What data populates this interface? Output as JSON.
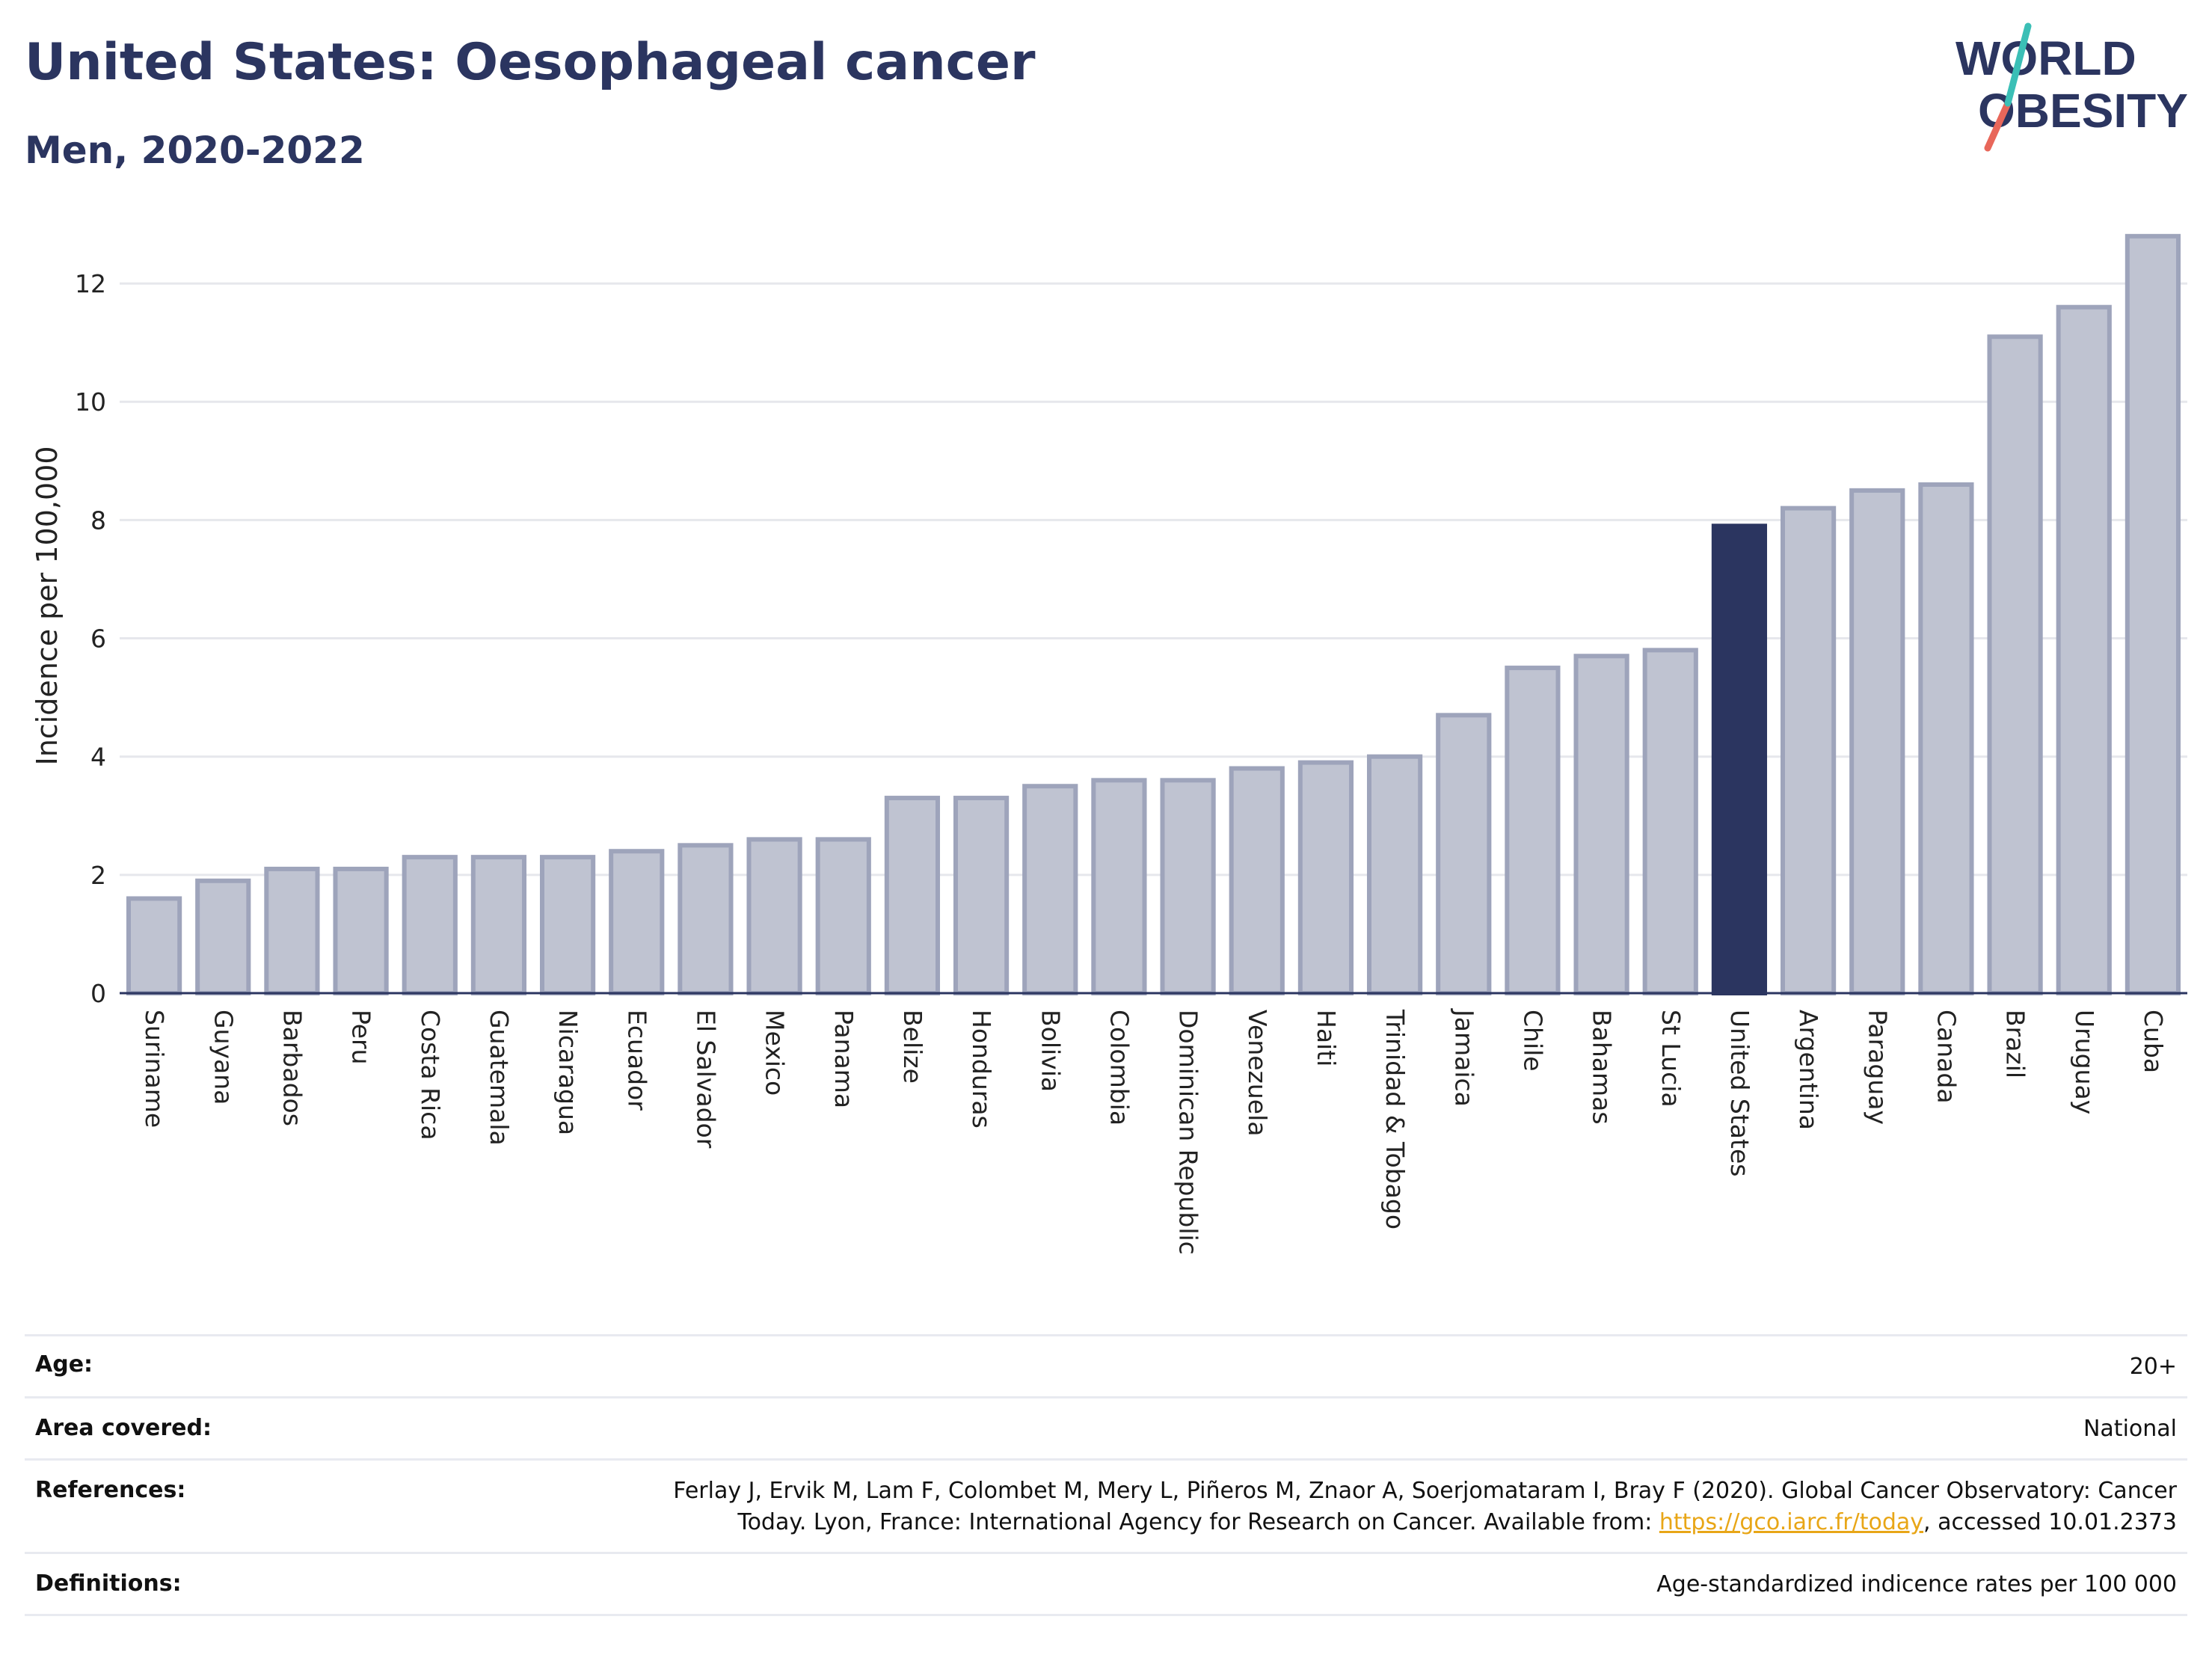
{
  "header": {
    "title": "United States: Oesophageal cancer",
    "subtitle": "Men, 2020-2022"
  },
  "logo": {
    "line1": "WORLD",
    "line2": "OBESITY"
  },
  "colors": {
    "bar": "#bfc3d1",
    "bar_stroke": "#9ea4bb",
    "highlight": "#2b3560",
    "grid": "#e6e7ec",
    "axis": "#2b3560"
  },
  "chart_data": {
    "type": "bar",
    "title": "United States: Oesophageal cancer",
    "subtitle": "Men, 2020-2022",
    "ylabel": "Incidence per 100,000",
    "xlabel": "",
    "ylim": [
      0,
      13
    ],
    "yticks": [
      0,
      2,
      4,
      6,
      8,
      10,
      12
    ],
    "grid": true,
    "highlight": "United States",
    "categories": [
      "Suriname",
      "Guyana",
      "Barbados",
      "Peru",
      "Costa Rica",
      "Guatemala",
      "Nicaragua",
      "Ecuador",
      "El Salvador",
      "Mexico",
      "Panama",
      "Belize",
      "Honduras",
      "Bolivia",
      "Colombia",
      "Dominican Republic",
      "Venezuela",
      "Haiti",
      "Trinidad & Tobago",
      "Jamaica",
      "Chile",
      "Bahamas",
      "St Lucia",
      "United States",
      "Argentina",
      "Paraguay",
      "Canada",
      "Brazil",
      "Uruguay",
      "Cuba"
    ],
    "values": [
      1.6,
      1.9,
      2.1,
      2.1,
      2.3,
      2.3,
      2.3,
      2.4,
      2.5,
      2.6,
      2.6,
      3.3,
      3.3,
      3.5,
      3.6,
      3.6,
      3.8,
      3.9,
      4.0,
      4.7,
      5.5,
      5.7,
      5.8,
      7.9,
      8.2,
      8.5,
      8.6,
      11.1,
      11.6,
      12.8
    ]
  },
  "info": {
    "age_label": "Age:",
    "age_value": "20+",
    "area_label": "Area covered:",
    "area_value": "National",
    "references_label": "References:",
    "references_line1": "Ferlay J, Ervik M, Lam F, Colombet M, Mery L, Piñeros M, Znaor A, Soerjomataram I, Bray F (2020). Global Cancer Observatory: Cancer",
    "references_line2_pre": "Today. Lyon, France: International Agency for Research on Cancer. Available from: ",
    "references_link": "https://gco.iarc.fr/today",
    "references_line2_post": ", accessed 10.01.2373",
    "definitions_label": "Definitions:",
    "definitions_value": "Age-standardized indicence rates per 100 000"
  }
}
